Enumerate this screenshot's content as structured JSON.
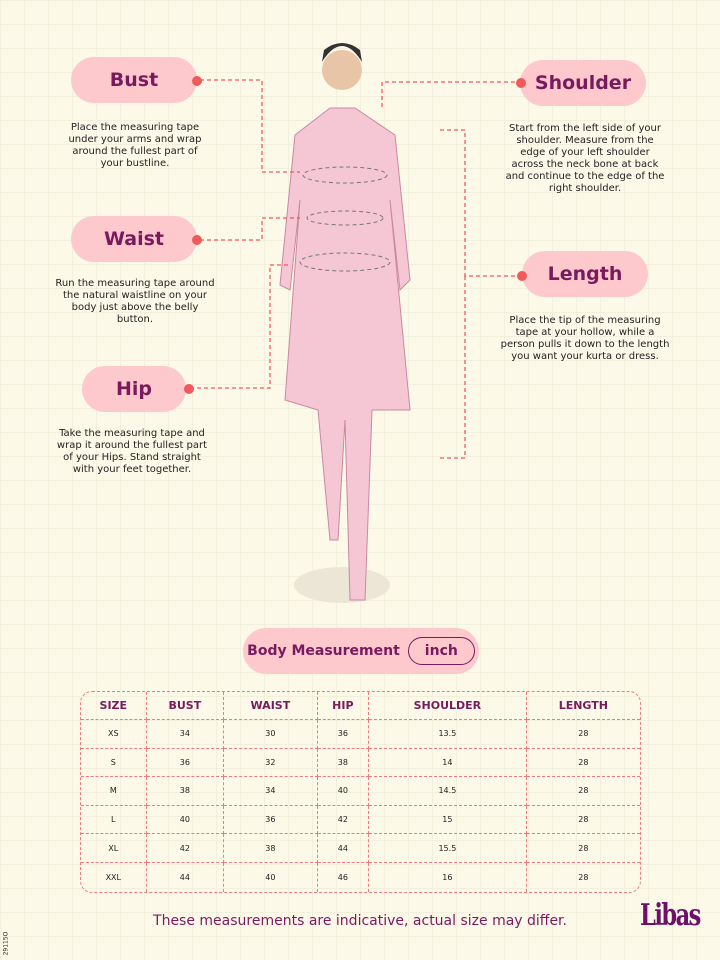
{
  "labels": {
    "bust": {
      "title": "Bust",
      "desc": "Place the measuring tape under your arms and wrap around the fullest part of your bustline."
    },
    "waist": {
      "title": "Waist",
      "desc": "Run the measuring tape around the natural waistline on your body just above the belly button."
    },
    "hip": {
      "title": "Hip",
      "desc": "Take the measuring tape and wrap it around the fullest part of your Hips. Stand straight with your feet together."
    },
    "shoulder": {
      "title": "Shoulder",
      "desc": "Start from the left side of your shoulder. Measure from the edge of your left shoulder across the neck bone at back and continue to the edge of the right shoulder."
    },
    "length": {
      "title": "Length",
      "desc": "Place the tip of the measuring tape at your hollow, while a person pulls it down to the length you want your kurta or dress."
    }
  },
  "measurement": {
    "title": "Body Measurement",
    "unit": "inch"
  },
  "table": {
    "headers": [
      "SIZE",
      "BUST",
      "WAIST",
      "HIP",
      "SHOULDER",
      "LENGTH"
    ],
    "rows": [
      [
        "XS",
        "34",
        "30",
        "36",
        "13.5",
        "28"
      ],
      [
        "S",
        "36",
        "32",
        "38",
        "14",
        "28"
      ],
      [
        "M",
        "38",
        "34",
        "40",
        "14.5",
        "28"
      ],
      [
        "L",
        "40",
        "36",
        "42",
        "15",
        "28"
      ],
      [
        "XL",
        "42",
        "38",
        "44",
        "15.5",
        "28"
      ],
      [
        "XXL",
        "44",
        "40",
        "46",
        "16",
        "28"
      ]
    ]
  },
  "footer": "These measurements are indicative, actual size may differ.",
  "logo": "Libas",
  "code": "29115O",
  "colors": {
    "pill": "#fdc9cd",
    "accent": "#7a1a5e",
    "dot": "#f05a5a"
  }
}
